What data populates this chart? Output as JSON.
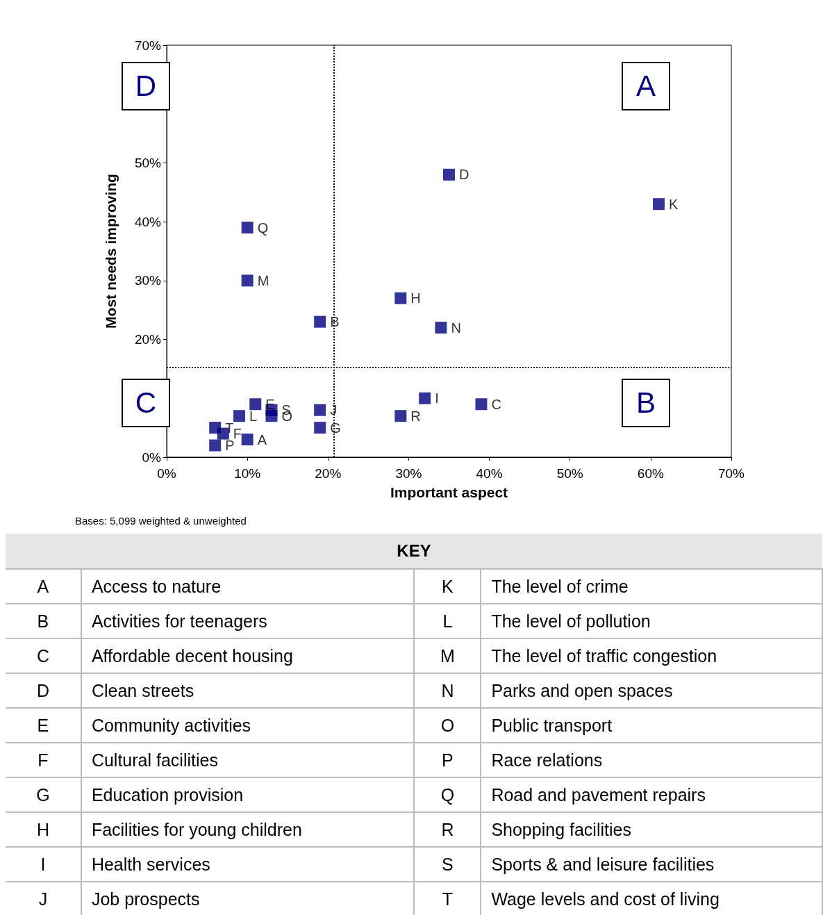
{
  "chart_data": {
    "type": "scatter",
    "xlabel": "Important aspect",
    "ylabel": "Most needs improving",
    "x": [
      10,
      19,
      39,
      35,
      11,
      7,
      19,
      29,
      32,
      19,
      61,
      9,
      10,
      34,
      13,
      6,
      10,
      29,
      13,
      6
    ],
    "values": [
      3,
      23,
      9,
      48,
      9,
      4,
      5,
      27,
      10,
      8,
      43,
      7,
      30,
      22,
      7,
      2,
      39,
      7,
      8,
      5
    ],
    "value_labels": [
      "A",
      "B",
      "C",
      "D",
      "E",
      "F",
      "G",
      "H",
      "I",
      "J",
      "K",
      "L",
      "M",
      "N",
      "O",
      "P",
      "Q",
      "R",
      "S",
      "T"
    ],
    "color": "#000080",
    "marker": "square",
    "grid": false,
    "xlim": [
      0,
      70
    ],
    "ylim": [
      0,
      70
    ],
    "xticks": [
      {
        "value": 0,
        "label": "0%"
      },
      {
        "value": 10,
        "label": "10%"
      },
      {
        "value": 20,
        "label": "20%"
      },
      {
        "value": 30,
        "label": "30%"
      },
      {
        "value": 40,
        "label": "40%"
      },
      {
        "value": 50,
        "label": "50%"
      },
      {
        "value": 60,
        "label": "60%"
      },
      {
        "value": 70,
        "label": "70%"
      }
    ],
    "yticks": [
      {
        "value": 0,
        "label": "0%"
      },
      {
        "value": 10,
        "label": null
      },
      {
        "value": 20,
        "label": "20%"
      },
      {
        "value": 30,
        "label": "30%"
      },
      {
        "value": 40,
        "label": "40%"
      },
      {
        "value": 50,
        "label": "50%"
      },
      {
        "value": 60,
        "label": null
      },
      {
        "value": 70,
        "label": "70%"
      }
    ],
    "ref_lines": [
      {
        "axis": "x",
        "value": 20.7,
        "line_style": "dotted",
        "color": "#000000"
      },
      {
        "axis": "y",
        "value": 15.2,
        "line_style": "dotted",
        "color": "#000000"
      }
    ],
    "annotations": [
      "Bases: 5,099 weighted & unweighted",
      "D",
      "A",
      "C",
      "B",
      "KEY",
      "A",
      "Access to nature",
      "K",
      "The level of crime",
      "B",
      "Activities for teenagers",
      "L",
      "The level of pollution",
      "C",
      "Affordable decent housing",
      "M",
      "The level of traffic congestion",
      "D",
      "Clean streets",
      "N",
      "Parks and open spaces",
      "E",
      "Community activities",
      "O",
      "Public transport",
      "F",
      "Cultural facilities",
      "P",
      "Race relations",
      "G",
      "Education provision",
      "Q",
      "Road and pavement repairs",
      "H",
      "Facilities for young children",
      "R",
      "Shopping facilities",
      "I",
      "Health services",
      "S",
      "Sports & and leisure facilities",
      "J",
      "Job prospects",
      "T",
      "Wage levels and cost of living"
    ]
  }
}
